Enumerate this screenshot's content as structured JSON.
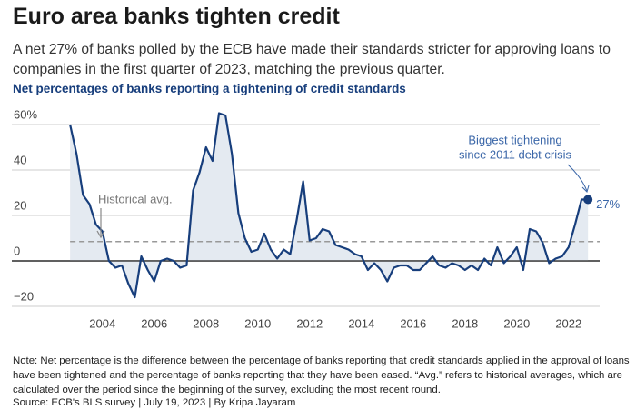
{
  "header": {
    "title": "Euro area banks tighten credit",
    "subtitle": "A net 27% of banks polled by the ECB have made their standards stricter for approving loans to companies in the first quarter of 2023, matching the previous quarter."
  },
  "chart_data": {
    "type": "area-line",
    "title": "Net percentages of banks reporting a tightening of credit standards",
    "x": [
      2002.75,
      2003,
      2003.25,
      2003.5,
      2003.75,
      2004,
      2004.25,
      2004.5,
      2004.75,
      2005,
      2005.25,
      2005.5,
      2005.75,
      2006,
      2006.25,
      2006.5,
      2006.75,
      2007,
      2007.25,
      2007.5,
      2007.75,
      2008,
      2008.25,
      2008.5,
      2008.75,
      2009,
      2009.25,
      2009.5,
      2009.75,
      2010,
      2010.25,
      2010.5,
      2010.75,
      2011,
      2011.25,
      2011.5,
      2011.75,
      2012,
      2012.25,
      2012.5,
      2012.75,
      2013,
      2013.25,
      2013.5,
      2013.75,
      2014,
      2014.25,
      2014.5,
      2014.75,
      2015,
      2015.25,
      2015.5,
      2015.75,
      2016,
      2016.25,
      2016.5,
      2016.75,
      2017,
      2017.25,
      2017.5,
      2017.75,
      2018,
      2018.25,
      2018.5,
      2018.75,
      2019,
      2019.25,
      2019.5,
      2019.75,
      2020,
      2020.25,
      2020.5,
      2020.75,
      2021,
      2021.25,
      2021.5,
      2021.75,
      2022,
      2022.25,
      2022.5,
      2022.75
    ],
    "series": [
      {
        "name": "Net percentage",
        "color": "#173e7c",
        "fill": "#e4eaf1",
        "values": [
          60,
          47,
          29,
          25,
          16,
          13,
          0,
          -3,
          -2,
          -10,
          -16,
          2,
          -4,
          -9,
          0,
          1,
          0,
          -3,
          -2,
          31,
          39,
          50,
          44,
          65,
          64,
          47,
          21,
          10,
          4,
          5,
          12,
          5,
          1,
          5,
          3,
          18,
          35,
          9,
          10,
          14,
          13,
          7,
          6,
          5,
          3,
          2,
          -4,
          -1,
          -4,
          -9,
          -3,
          -2,
          -2,
          -4,
          -4,
          -1,
          2,
          -2,
          -3,
          -1,
          -2,
          -4,
          -2,
          -4,
          1,
          -2,
          6,
          -1,
          2,
          6,
          -4,
          14,
          13,
          8,
          -1,
          1,
          2,
          6,
          16,
          27,
          27
        ],
        "value_labels": [
          null,
          null,
          null,
          null,
          null,
          null,
          null,
          null,
          null,
          null,
          null,
          null,
          null,
          null,
          null,
          null,
          null,
          null,
          null,
          null,
          null,
          null,
          null,
          null,
          null,
          null,
          null,
          null,
          null,
          null,
          null,
          null,
          null,
          null,
          null,
          null,
          null,
          null,
          null,
          null,
          null,
          null,
          null,
          null,
          null,
          null,
          null,
          null,
          null,
          null,
          null,
          null,
          null,
          null,
          null,
          null,
          null,
          null,
          null,
          null,
          null,
          null,
          null,
          null,
          null,
          null,
          null,
          null,
          null,
          null,
          null,
          null,
          null,
          null,
          null,
          null,
          null,
          null,
          null,
          null,
          "27%"
        ]
      }
    ],
    "avg": 8.5,
    "annotations": [
      "Historical avg.",
      "Biggest tightening",
      "since 2011 debt crisis"
    ],
    "xlim": [
      2000.5,
      2023.2
    ],
    "xticks": [
      2004,
      2006,
      2008,
      2010,
      2012,
      2014,
      2016,
      2018,
      2020,
      2022
    ],
    "ylim": [
      -22,
      68
    ],
    "yticks": [
      {
        "value": 60,
        "label": "60%"
      },
      40,
      20,
      0,
      {
        "value": -20,
        "label": "−20"
      }
    ],
    "grid": true
  },
  "footer": {
    "note": "Note: Net percentage is the difference between the percentage of banks reporting that credit standards applied in the approval of loans have been tightened and the percentage of banks reporting that they have been eased. “Avg.” refers to historical averages, which are calculated over the period since the beginning of the survey, excluding the most recent round.",
    "source": "Source: ECB's BLS survey | July 19, 2023 | By Kripa Jayaram"
  }
}
